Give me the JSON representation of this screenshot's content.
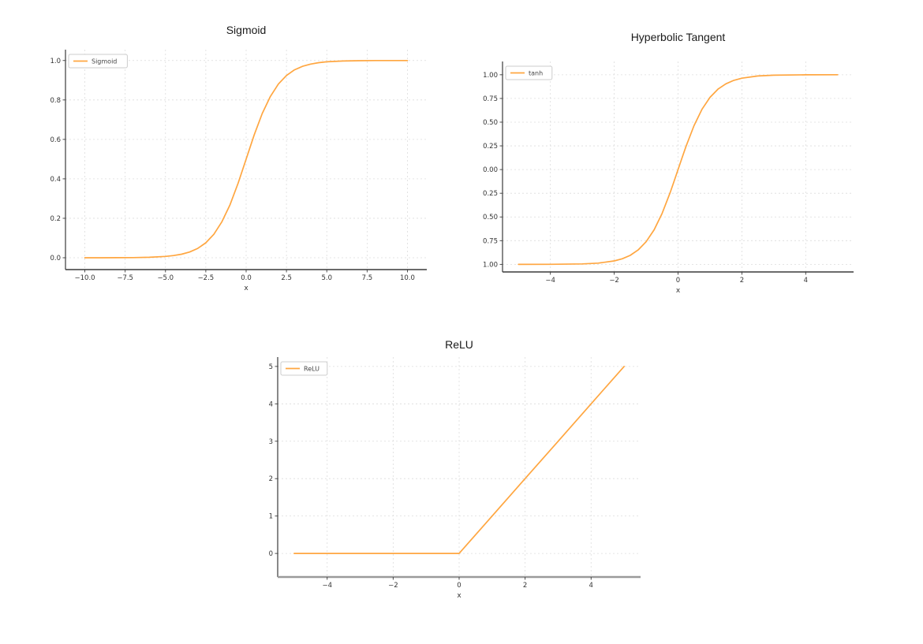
{
  "page": {
    "background": "#ffffff"
  },
  "chart_data": [
    {
      "type": "line",
      "title": "Sigmoid",
      "xlabel": "x",
      "ylabel": "",
      "grid": true,
      "grid_color": "#dcdcdc",
      "line_color": "#FFA640",
      "legend": {
        "position": "top-left",
        "entries": [
          {
            "label": "Sigmoid",
            "color": "#FFA640"
          }
        ]
      },
      "xlim": [
        -11.2,
        11.2
      ],
      "ylim": [
        -0.06,
        1.055
      ],
      "xticks": {
        "values": [
          -10,
          -7.5,
          -5,
          -2.5,
          0,
          2.5,
          5,
          7.5,
          10
        ],
        "labels": [
          "−10.0",
          "−7.5",
          "−5.0",
          "−2.5",
          "0.0",
          "2.5",
          "5.0",
          "7.5",
          "10.0"
        ]
      },
      "yticks": {
        "values": [
          0,
          0.2,
          0.4,
          0.6,
          0.8,
          1
        ],
        "labels": [
          "0.0",
          "0.2",
          "0.4",
          "0.6",
          "0.8",
          "1.0"
        ]
      },
      "series": [
        {
          "name": "Sigmoid",
          "color": "#FFA640",
          "x": [
            -10,
            -9,
            -8,
            -7,
            -6,
            -5,
            -4.5,
            -4,
            -3.5,
            -3,
            -2.5,
            -2,
            -1.5,
            -1,
            -0.5,
            0,
            0.5,
            1,
            1.5,
            2,
            2.5,
            3,
            3.5,
            4,
            4.5,
            5,
            6,
            7,
            8,
            9,
            10
          ],
          "y": [
            0.0,
            0.0001,
            0.0003,
            0.0009,
            0.0025,
            0.0067,
            0.011,
            0.018,
            0.0293,
            0.0474,
            0.0759,
            0.1192,
            0.1824,
            0.2689,
            0.3775,
            0.5,
            0.6225,
            0.7311,
            0.8176,
            0.8808,
            0.9241,
            0.9526,
            0.9707,
            0.982,
            0.989,
            0.9933,
            0.9975,
            0.9991,
            0.9997,
            0.9999,
            1.0
          ]
        }
      ]
    },
    {
      "type": "line",
      "title": "Hyperbolic Tangent",
      "xlabel": "x",
      "ylabel": "",
      "grid": true,
      "grid_color": "#dcdcdc",
      "line_color": "#FFA640",
      "legend": {
        "position": "top-left",
        "entries": [
          {
            "label": "tanh",
            "color": "#FFA640"
          }
        ]
      },
      "xlim": [
        -5.5,
        5.5
      ],
      "ylim": [
        -1.08,
        1.14
      ],
      "xticks": {
        "values": [
          -4,
          -2,
          0,
          2,
          4
        ],
        "labels": [
          "−4",
          "−2",
          "0",
          "2",
          "4"
        ]
      },
      "yticks": {
        "values": [
          1,
          0.75,
          0.5,
          0.25,
          0,
          -0.25,
          -0.5,
          -0.75,
          -1
        ],
        "labels": [
          "1.00",
          "0.75",
          "0.50",
          "0.25",
          "0.00",
          "−0.25",
          "−0.50",
          "−0.75",
          "−1.00"
        ]
      },
      "series": [
        {
          "name": "tanh",
          "color": "#FFA640",
          "x": [
            -5,
            -4,
            -3,
            -2.5,
            -2,
            -1.75,
            -1.5,
            -1.25,
            -1,
            -0.75,
            -0.5,
            -0.25,
            -0.125,
            0,
            0.125,
            0.25,
            0.5,
            0.75,
            1,
            1.25,
            1.5,
            1.75,
            2,
            2.5,
            3,
            4,
            5
          ],
          "y": [
            -0.9999,
            -0.9993,
            -0.9951,
            -0.9866,
            -0.964,
            -0.9414,
            -0.9051,
            -0.8483,
            -0.7616,
            -0.6351,
            -0.4621,
            -0.2449,
            -0.1244,
            0,
            0.1244,
            0.2449,
            0.4621,
            0.6351,
            0.7616,
            0.8483,
            0.9051,
            0.9414,
            0.964,
            0.9866,
            0.9951,
            0.9993,
            0.9999
          ]
        }
      ]
    },
    {
      "type": "line",
      "title": "ReLU",
      "xlabel": "x",
      "ylabel": "",
      "grid": true,
      "grid_color": "#dcdcdc",
      "line_color": "#FFA640",
      "legend": {
        "position": "top-left",
        "entries": [
          {
            "label": "ReLU",
            "color": "#FFA640"
          }
        ]
      },
      "xlim": [
        -5.5,
        5.5
      ],
      "ylim": [
        -0.63,
        5.25
      ],
      "xticks": {
        "values": [
          -4,
          -2,
          0,
          2,
          4
        ],
        "labels": [
          "−4",
          "−2",
          "0",
          "2",
          "4"
        ]
      },
      "yticks": {
        "values": [
          0,
          1,
          2,
          3,
          4,
          5
        ],
        "labels": [
          "0",
          "1",
          "2",
          "3",
          "4",
          "5"
        ]
      },
      "series": [
        {
          "name": "ReLU",
          "color": "#FFA640",
          "x": [
            -5,
            -4,
            -3,
            -2,
            -1,
            0,
            1,
            2,
            3,
            4,
            5
          ],
          "y": [
            0,
            0,
            0,
            0,
            0,
            0,
            1,
            2,
            3,
            4,
            5
          ]
        }
      ]
    }
  ]
}
